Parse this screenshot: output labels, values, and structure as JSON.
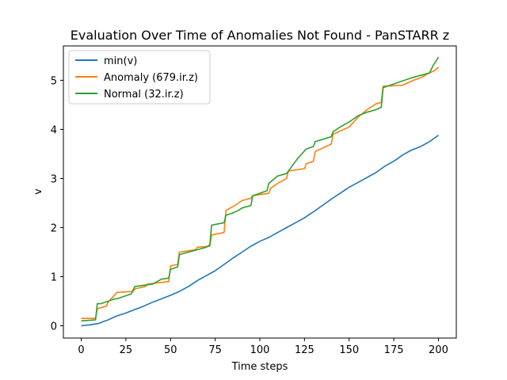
{
  "chart_data": {
    "type": "line",
    "title": "Evaluation Over Time of Anomalies Not Found - PanSTARR z",
    "xlabel": "Time steps",
    "ylabel": "v",
    "xlim": [
      -10,
      210
    ],
    "ylim": [
      -0.25,
      5.7
    ],
    "xticks": [
      0,
      25,
      50,
      75,
      100,
      125,
      150,
      175,
      200
    ],
    "yticks": [
      0,
      1,
      2,
      3,
      4,
      5
    ],
    "grid": false,
    "legend": "top-left",
    "series": [
      {
        "name": "min(v)",
        "color": "#1f77b4",
        "x": [
          0,
          5,
          10,
          12,
          15,
          18,
          20,
          25,
          30,
          35,
          40,
          45,
          50,
          55,
          60,
          65,
          70,
          75,
          80,
          85,
          90,
          95,
          100,
          105,
          110,
          115,
          120,
          125,
          130,
          135,
          140,
          145,
          150,
          155,
          160,
          165,
          170,
          175,
          180,
          185,
          190,
          195,
          200
        ],
        "y": [
          0.0,
          0.02,
          0.05,
          0.08,
          0.12,
          0.17,
          0.2,
          0.26,
          0.33,
          0.4,
          0.48,
          0.55,
          0.62,
          0.7,
          0.8,
          0.92,
          1.02,
          1.12,
          1.25,
          1.38,
          1.5,
          1.62,
          1.72,
          1.8,
          1.9,
          2.0,
          2.1,
          2.2,
          2.32,
          2.45,
          2.58,
          2.7,
          2.82,
          2.92,
          3.02,
          3.12,
          3.25,
          3.35,
          3.48,
          3.58,
          3.65,
          3.75,
          3.88
        ]
      },
      {
        "name": "Anomaly (679.ir.z)",
        "color": "#ff7f0e",
        "x": [
          0,
          8,
          9,
          14,
          15,
          18,
          20,
          29,
          30,
          36,
          37,
          49,
          50,
          54,
          55,
          64,
          65,
          72,
          73,
          80,
          81,
          86,
          90,
          95,
          96,
          105,
          106,
          110,
          115,
          116,
          125,
          126,
          130,
          131,
          140,
          141,
          150,
          155,
          160,
          165,
          168,
          169,
          180,
          186,
          190,
          195,
          198,
          200
        ],
        "y": [
          0.15,
          0.15,
          0.35,
          0.4,
          0.48,
          0.6,
          0.68,
          0.7,
          0.75,
          0.8,
          0.85,
          0.9,
          1.22,
          1.25,
          1.5,
          1.55,
          1.6,
          1.62,
          1.85,
          1.9,
          2.35,
          2.45,
          2.55,
          2.6,
          2.65,
          2.7,
          2.8,
          2.9,
          3.0,
          3.15,
          3.2,
          3.3,
          3.35,
          3.55,
          3.7,
          3.9,
          4.05,
          4.25,
          4.4,
          4.52,
          4.55,
          4.88,
          4.9,
          5.0,
          5.05,
          5.15,
          5.2,
          5.27
        ]
      },
      {
        "name": "Normal (32.ir.z)",
        "color": "#2ca02c",
        "x": [
          0,
          8,
          9,
          11,
          15,
          19,
          20,
          28,
          30,
          40,
          45,
          49,
          50,
          54,
          55,
          70,
          72,
          73,
          80,
          81,
          85,
          88,
          90,
          95,
          96,
          100,
          104,
          105,
          110,
          115,
          116,
          120,
          121,
          126,
          130,
          131,
          140,
          141,
          145,
          150,
          155,
          160,
          165,
          168,
          169,
          185,
          190,
          195,
          197,
          200
        ],
        "y": [
          0.1,
          0.12,
          0.45,
          0.45,
          0.5,
          0.55,
          0.55,
          0.65,
          0.8,
          0.85,
          0.95,
          0.97,
          1.15,
          1.2,
          1.45,
          1.6,
          1.65,
          2.05,
          2.1,
          2.25,
          2.3,
          2.35,
          2.4,
          2.45,
          2.65,
          2.7,
          2.75,
          2.9,
          3.05,
          3.1,
          3.15,
          3.35,
          3.4,
          3.6,
          3.65,
          3.75,
          3.85,
          3.95,
          4.05,
          4.15,
          4.28,
          4.35,
          4.4,
          4.45,
          4.85,
          5.05,
          5.1,
          5.15,
          5.3,
          5.47
        ]
      }
    ]
  }
}
